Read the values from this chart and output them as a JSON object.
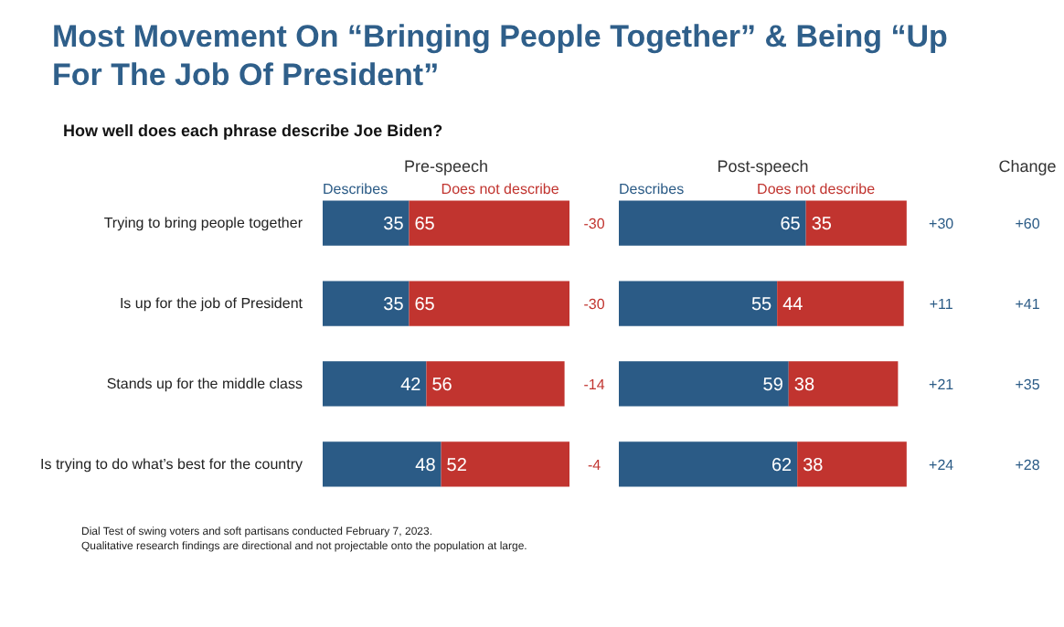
{
  "chart_data": [
    {
      "type": "bar",
      "orientation": "horizontal",
      "title": "Most Movement On “Bringing People Together” & Being “Up For The Job Of President”",
      "subtitle": "How well does each phrase describe Joe Biden?",
      "xlabel": "Pre-speech",
      "categories": [
        "Trying to bring people together",
        "Is up for the job of President",
        "Stands up for the middle class",
        "Is trying to do what’s best for the country"
      ],
      "series": [
        {
          "name": "Describes",
          "color": "#2b5b86",
          "values": [
            35,
            35,
            42,
            48
          ]
        },
        {
          "name": "Does not describe",
          "color": "#c1342f",
          "values": [
            65,
            65,
            56,
            52
          ]
        }
      ],
      "stacked": true,
      "data_labels": true,
      "xlim": [
        0,
        120
      ],
      "tick_labels": "y",
      "grid": false,
      "annotations": [
        "-30",
        "-30",
        "-14",
        "-4",
        "Dial Test of swing voters and soft partisans conducted February 7, 2023.",
        "Qualitative research findings are directional and not projectable onto the population at large."
      ]
    },
    {
      "type": "bar",
      "orientation": "horizontal",
      "xlabel": "Post-speech",
      "categories": [
        null,
        null,
        null,
        null
      ],
      "series": [
        {
          "name": "Describes",
          "color": "#2b5b86",
          "values": [
            65,
            55,
            59,
            62
          ]
        },
        {
          "name": "Does not describe",
          "color": "#c1342f",
          "values": [
            35,
            44,
            38,
            38
          ]
        }
      ],
      "stacked": true,
      "data_labels": true,
      "xlim": [
        0,
        155
      ],
      "tick_labels": false,
      "grid": false,
      "annotations": [
        "+30",
        "+11",
        "+21",
        "+24",
        "Change",
        "+60",
        "+41",
        "+35",
        "+28"
      ]
    }
  ]
}
